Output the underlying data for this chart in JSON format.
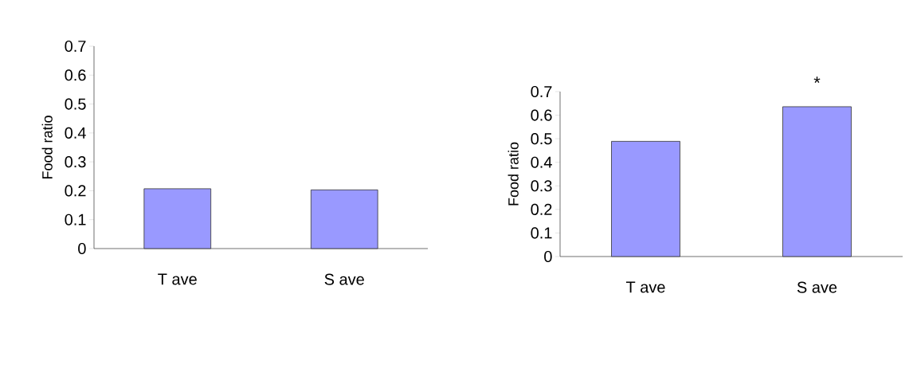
{
  "chart_data": [
    {
      "type": "bar",
      "categories": [
        "T ave",
        "S ave"
      ],
      "values": [
        0.207,
        0.203
      ],
      "color": "#9999ff",
      "ylabel": "Food ratio",
      "ylim": [
        0,
        0.7
      ],
      "yticks": [
        0,
        0.1,
        0.2,
        0.3,
        0.4,
        0.5,
        0.6,
        0.7
      ]
    },
    {
      "type": "bar",
      "categories": [
        "T ave",
        "S ave"
      ],
      "values": [
        0.489,
        0.636
      ],
      "color": "#9999ff",
      "ylabel": "Food ratio",
      "ylim": [
        0,
        0.7
      ],
      "yticks": [
        0,
        0.1,
        0.2,
        0.3,
        0.4,
        0.5,
        0.6,
        0.7
      ],
      "annotations": [
        "*"
      ]
    }
  ]
}
